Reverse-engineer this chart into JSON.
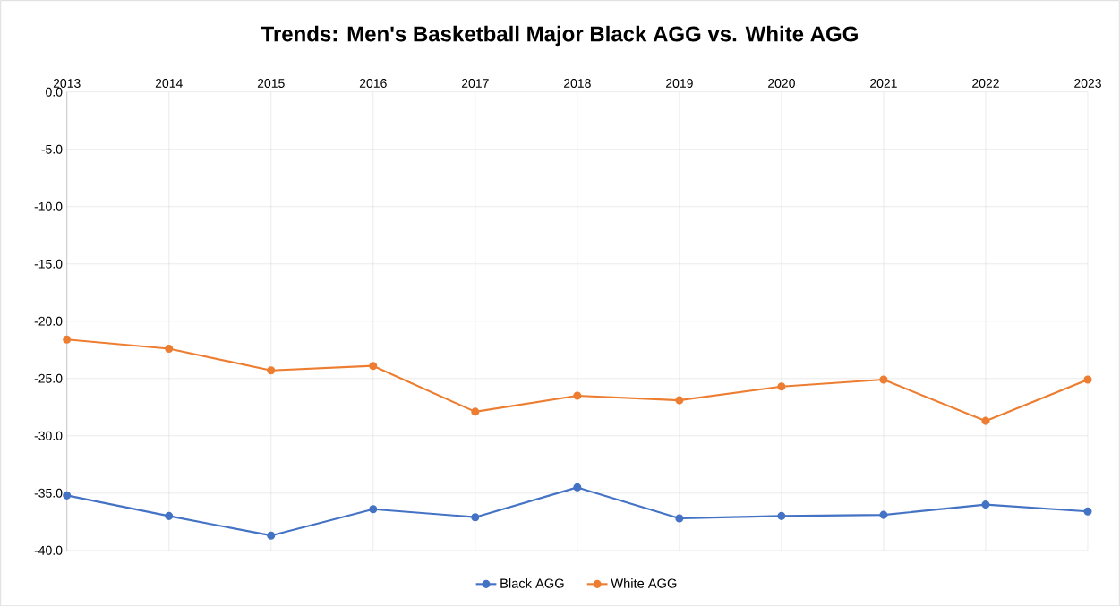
{
  "chart_data": {
    "type": "line",
    "title": "Trends: Men's Basketball Major Black AGG vs. White AGG",
    "x": [
      2013,
      2014,
      2015,
      2016,
      2017,
      2018,
      2019,
      2020,
      2021,
      2022,
      2023
    ],
    "series": [
      {
        "name": "Black AGG",
        "color": "#4472c4",
        "values": [
          -35.2,
          -37.0,
          -38.7,
          -36.4,
          -37.1,
          -34.5,
          -37.2,
          -37.0,
          -36.9,
          -36.0,
          -36.6
        ]
      },
      {
        "name": "White AGG",
        "color": "#ed7d31",
        "values": [
          -21.6,
          -22.4,
          -24.3,
          -23.9,
          -27.9,
          -26.5,
          -26.9,
          -25.7,
          -25.1,
          -28.7,
          -25.1
        ]
      }
    ],
    "xlim": [
      2013,
      2023
    ],
    "xticks": [
      2013,
      2014,
      2015,
      2016,
      2017,
      2018,
      2019,
      2020,
      2021,
      2022,
      2023
    ],
    "ylim": [
      -40,
      0
    ],
    "yticks": [
      {
        "value": 0,
        "label": "0.0"
      },
      {
        "value": -5,
        "label": "-5.0"
      },
      {
        "value": -10,
        "label": "-10.0"
      },
      {
        "value": -15,
        "label": "-15.0"
      },
      {
        "value": -20,
        "label": "-20.0"
      },
      {
        "value": -25,
        "label": "-25.0"
      },
      {
        "value": -30,
        "label": "-30.0"
      },
      {
        "value": -35,
        "label": "-35.0"
      },
      {
        "value": -40,
        "label": "-40.0"
      }
    ],
    "grid": true,
    "legend": "bottom",
    "marker": "circle",
    "line_style": "solid"
  }
}
